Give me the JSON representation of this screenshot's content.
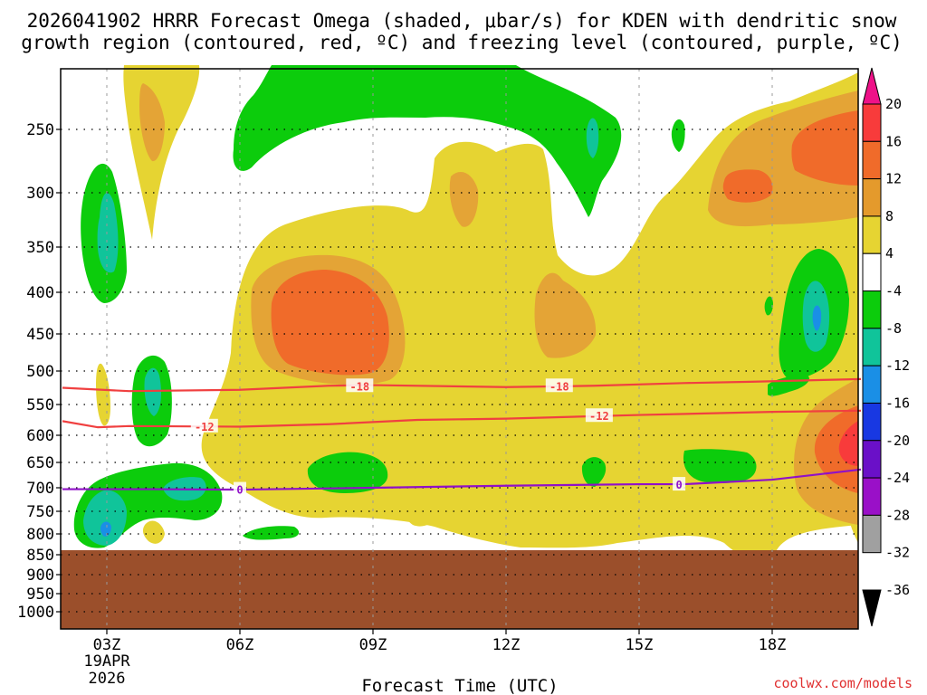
{
  "title_line1": "2026041902 HRRR Forecast Omega (shaded, μbar/s) for KDEN with dendritic snow",
  "title_line2": "growth region (contoured, red, ºC) and freezing level (contoured, purple, ºC)",
  "xlabel": "Forecast Time (UTC)",
  "date_label_1": "19APR",
  "date_label_2": "2026",
  "credit": "coolwx.com/models",
  "colors": {
    "ground": "#9b4f2b",
    "dgz_contour": "#f04040",
    "freezing_contour": "#9010c8"
  },
  "chart_data": {
    "type": "time-height contour",
    "y_ticks": [
      "250",
      "300",
      "350",
      "400",
      "450",
      "500",
      "550",
      "600",
      "650",
      "700",
      "750",
      "800",
      "850",
      "900",
      "950",
      "1000"
    ],
    "y_axis": "pressure (mb)",
    "x_ticks": [
      "03Z",
      "06Z",
      "09Z",
      "12Z",
      "15Z",
      "18Z"
    ],
    "x_range": [
      "02Z",
      "20Z"
    ],
    "surface_pressure_mb": 840,
    "colorbar": {
      "labels": [
        "20",
        "16",
        "12",
        "8",
        "4",
        "-4",
        "-8",
        "-12",
        "-16",
        "-20",
        "-24",
        "-28",
        "-32",
        "-36"
      ],
      "colors": [
        "#ee1188",
        "#f83b3b",
        "#f06b2a",
        "#e49a2c",
        "#e6d432",
        "#ffffff",
        "#0ccc0c",
        "#10c49a",
        "#1a8fe6",
        "#1838e2",
        "#6a10c8",
        "#9a10c8",
        "#a0a0a0",
        "#000000"
      ]
    },
    "contours": [
      {
        "label": "-18",
        "color": "#f04040",
        "points": [
          [
            2.0,
            525
          ],
          [
            3.5,
            530
          ],
          [
            6.0,
            528
          ],
          [
            8.0,
            522
          ],
          [
            9.0,
            521
          ],
          [
            12.0,
            524
          ],
          [
            14.0,
            522
          ],
          [
            16.0,
            518
          ],
          [
            17.5,
            516
          ],
          [
            20.0,
            512
          ]
        ]
      },
      {
        "label": "-12",
        "color": "#f04040",
        "points": [
          [
            2.0,
            577
          ],
          [
            2.8,
            587
          ],
          [
            3.5,
            585
          ],
          [
            6.0,
            586
          ],
          [
            8.0,
            582
          ],
          [
            10.0,
            575
          ],
          [
            12.0,
            573
          ],
          [
            15.0,
            567
          ],
          [
            18.0,
            562
          ],
          [
            20.0,
            560
          ]
        ]
      },
      {
        "label": "0",
        "color": "#9010c8",
        "points": [
          [
            2.0,
            703
          ],
          [
            4.0,
            703
          ],
          [
            6.0,
            704
          ],
          [
            9.0,
            700
          ],
          [
            12.0,
            696
          ],
          [
            15.0,
            693
          ],
          [
            16.0,
            693
          ],
          [
            18.0,
            684
          ],
          [
            20.0,
            664
          ]
        ]
      }
    ],
    "contour_label_positions": [
      {
        "text": "-18",
        "x": 8.7,
        "p": 522
      },
      {
        "text": "-18",
        "x": 13.2,
        "p": 522
      },
      {
        "text": "-12",
        "x": 5.2,
        "p": 585
      },
      {
        "text": "-12",
        "x": 14.1,
        "p": 568
      },
      {
        "text": "0",
        "x": 6.0,
        "p": 703
      },
      {
        "text": "0",
        "x": 15.9,
        "p": 693
      }
    ]
  }
}
